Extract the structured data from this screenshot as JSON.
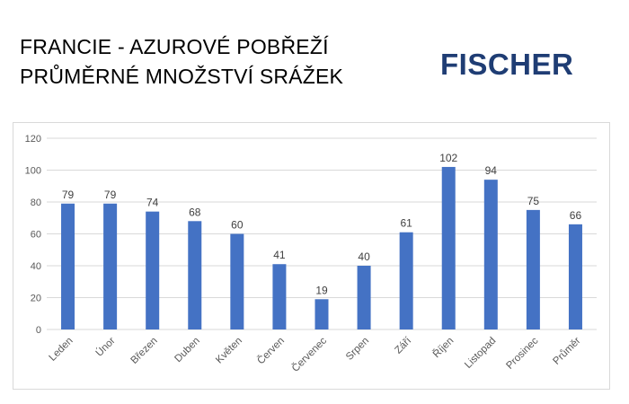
{
  "header": {
    "title_line1": "FRANCIE - AZUROVÉ POBŘEŽÍ",
    "title_line2": "PRŮMĚRNÉ MNOŽSTVÍ SRÁŽEK",
    "logo_text": "FISCHER"
  },
  "colors": {
    "bar": "#4472c4",
    "logo": "#1f3d74",
    "grid": "#d9d9d9"
  },
  "chart_data": {
    "type": "bar",
    "categories": [
      "Leden",
      "Únor",
      "Březen",
      "Duben",
      "Květen",
      "Červen",
      "Červenec",
      "Srpen",
      "Září",
      "Říjen",
      "Listopad",
      "Prosinec",
      "Průměr"
    ],
    "values": [
      79,
      79,
      74,
      68,
      60,
      41,
      19,
      40,
      61,
      102,
      94,
      75,
      66
    ],
    "ylim": [
      0,
      120
    ],
    "yticks": [
      0,
      20,
      40,
      60,
      80,
      100,
      120
    ],
    "grid": true,
    "data_labels": true,
    "legend": "none"
  }
}
